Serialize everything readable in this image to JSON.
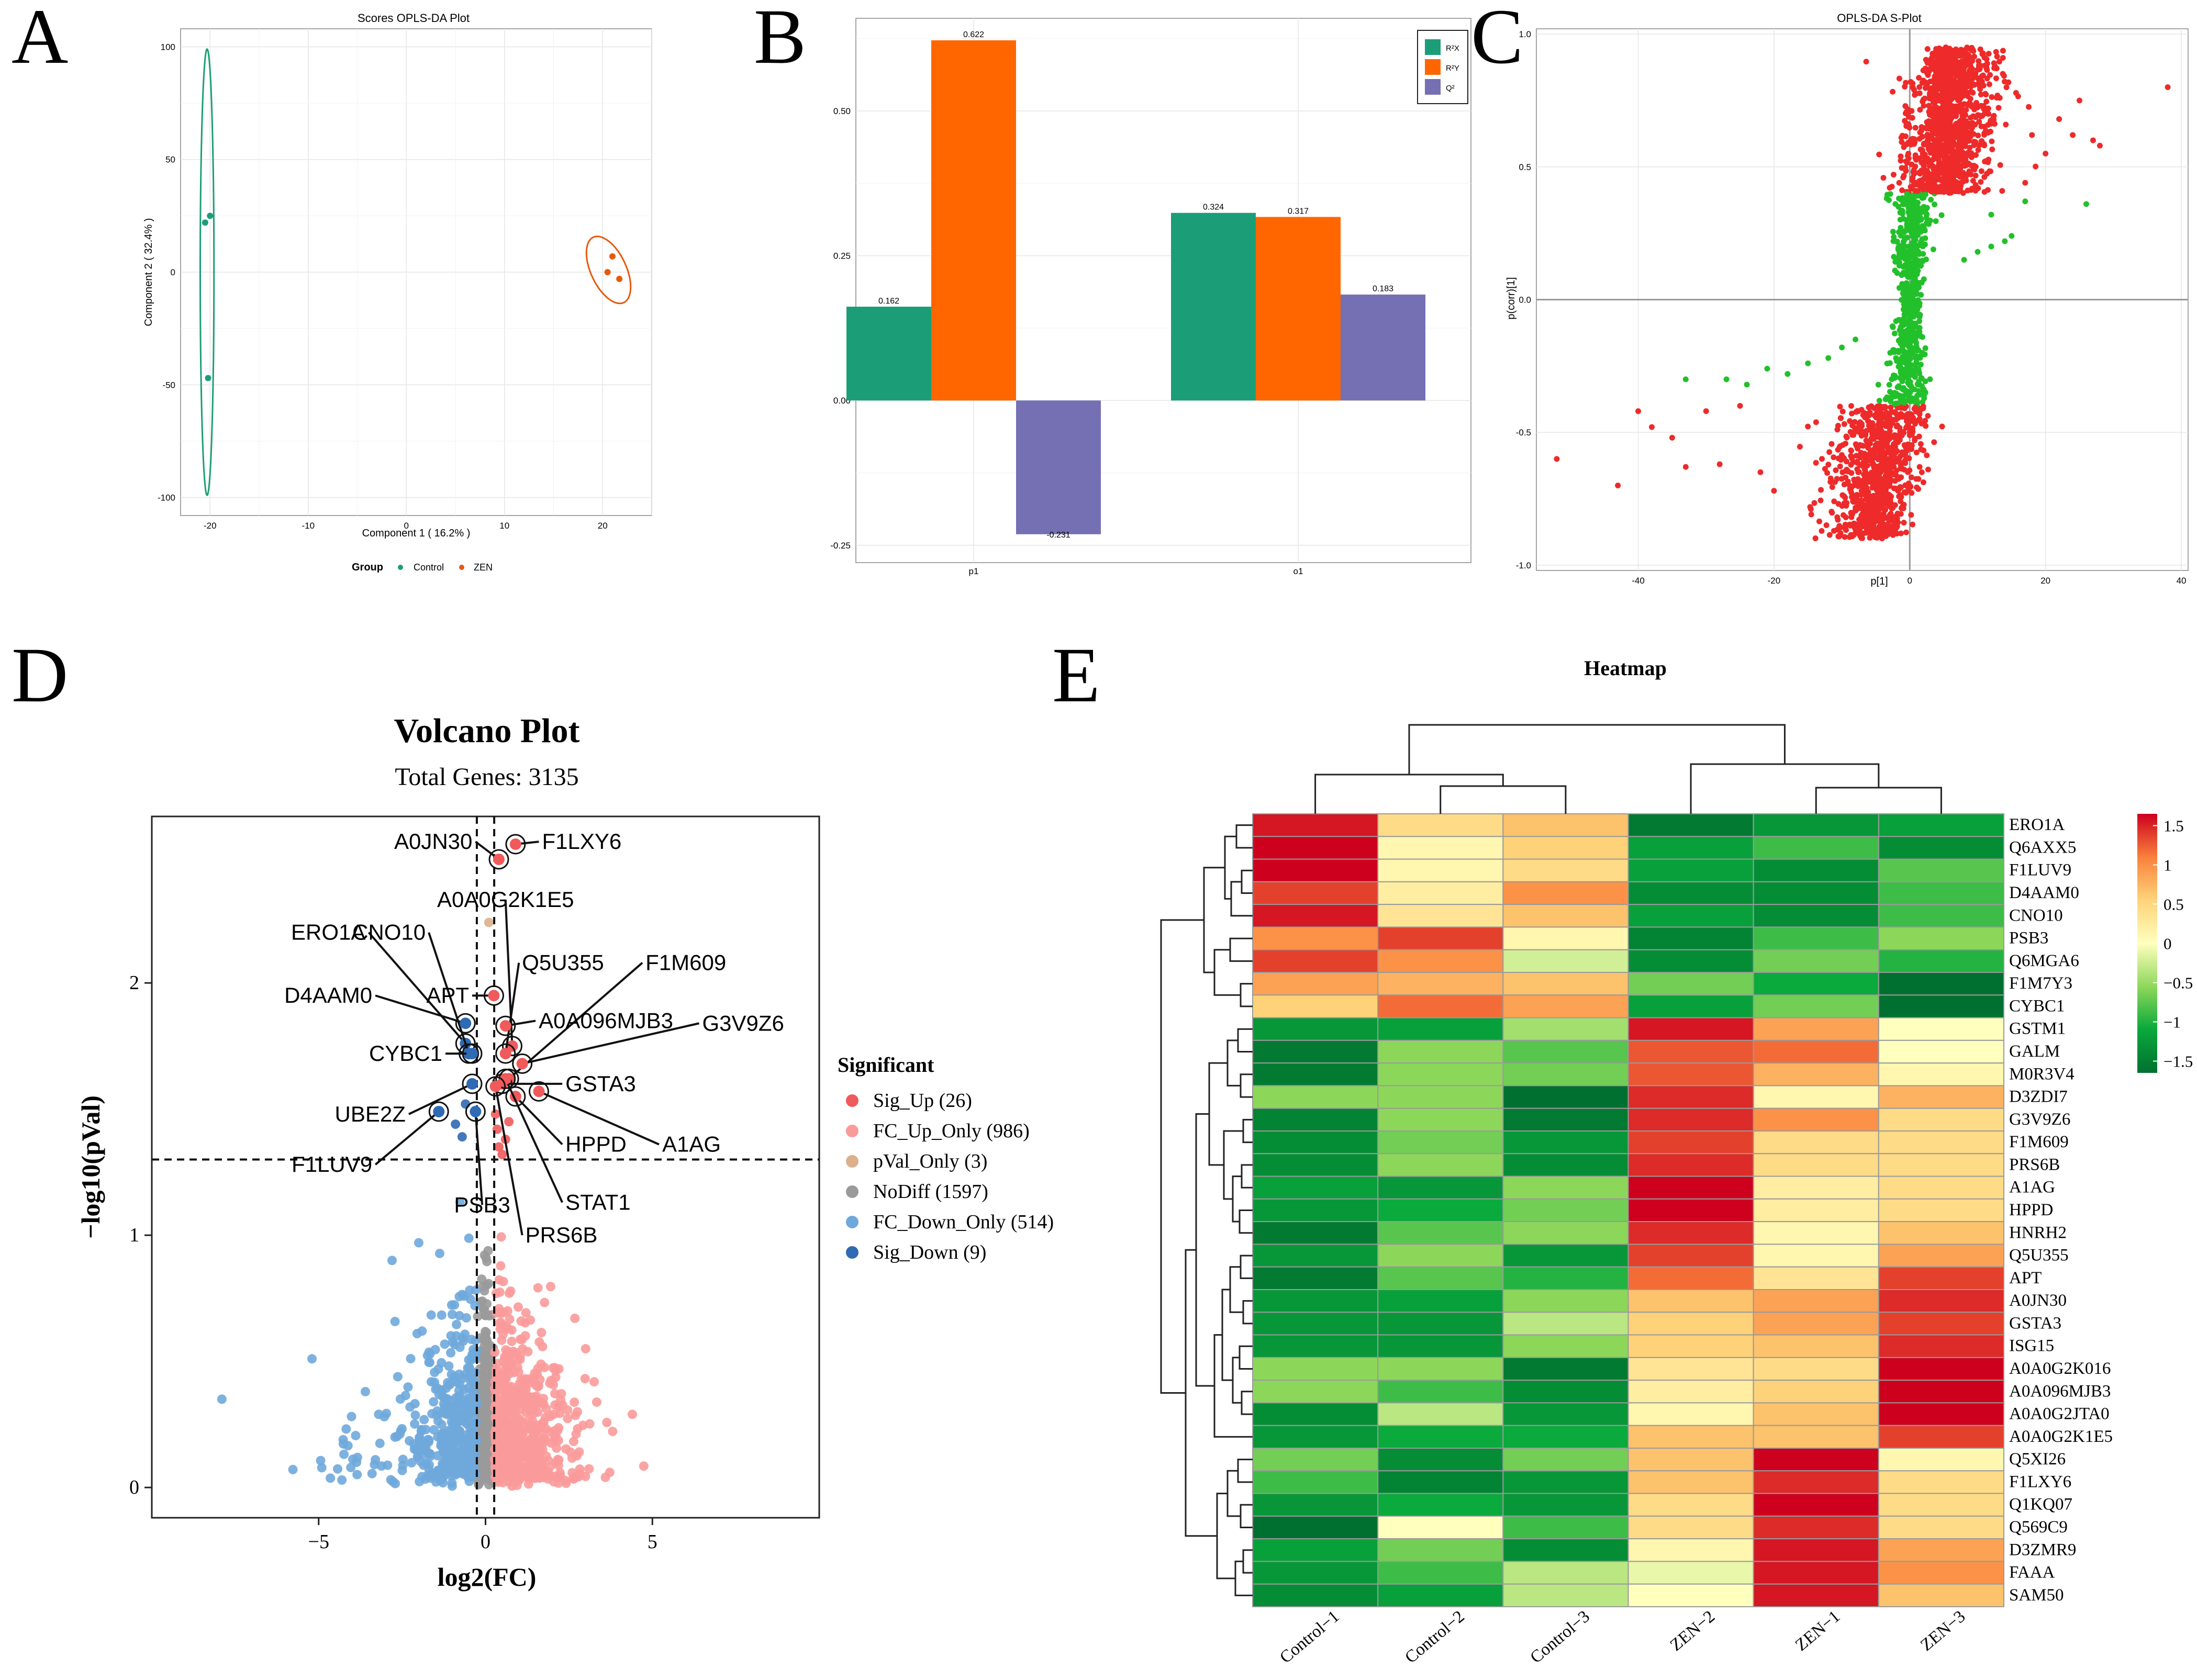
{
  "panel_letters": {
    "a": "A",
    "b": "B",
    "c": "C",
    "d": "D",
    "e": "E"
  },
  "colors": {
    "control": "#1b9e77",
    "zen": "#e8590c",
    "r2x": "#1b9e77",
    "r2y": "#ff6600",
    "q2": "#7570b3",
    "splot_red": "#ee2a2a",
    "splot_green": "#22c02a",
    "sig_up": "#f05a5a",
    "fc_up": "#fb9a9a",
    "pval_only": "#dcb08c",
    "nodiff": "#9a9a9a",
    "fc_down": "#6fa8dc",
    "sig_down": "#2f6ab4"
  },
  "chart_data": [
    {
      "panel": "A",
      "type": "scatter",
      "title": "Scores OPLS-DA Plot",
      "xlabel": "Component 1 ( 16.2% )",
      "ylabel": "Component 2 ( 32.4% )",
      "xlim": [
        -23,
        25
      ],
      "ylim": [
        -108,
        108
      ],
      "x_ticks": [
        "-20",
        "-10",
        "0",
        "10",
        "20"
      ],
      "y_ticks": [
        "-100",
        "-50",
        "0",
        "50",
        "100"
      ],
      "legend_title": "Group",
      "series": [
        {
          "name": "Control",
          "x": [
            -20.5,
            -20.0,
            -20.2
          ],
          "y": [
            22,
            25,
            -47
          ]
        },
        {
          "name": "ZEN",
          "x": [
            20.5,
            21.0,
            21.7
          ],
          "y": [
            0,
            7,
            -3
          ]
        }
      ],
      "ellipses": [
        {
          "name": "Control",
          "cx": -20.3,
          "cy": 0,
          "rx": 0.7,
          "ry": 99
        },
        {
          "name": "ZEN",
          "cx": 20.6,
          "cy": 1,
          "rx": 1.8,
          "ry": 16
        }
      ]
    },
    {
      "panel": "B",
      "type": "bar",
      "categories": [
        "p1",
        "o1"
      ],
      "series": [
        {
          "name": "R²X",
          "values": [
            0.162,
            0.324
          ],
          "labels": [
            "0.162",
            "0.324"
          ]
        },
        {
          "name": "R²Y",
          "values": [
            0.622,
            0.317
          ],
          "labels": [
            "0.622",
            "0.317"
          ]
        },
        {
          "name": "Q²",
          "values": [
            -0.231,
            0.183
          ],
          "labels": [
            "-0.231",
            "0.183"
          ]
        }
      ],
      "ylim": [
        -0.28,
        0.66
      ],
      "y_ticks": [
        "-0.25",
        "0.00",
        "0.25",
        "0.50"
      ]
    },
    {
      "panel": "C",
      "type": "scatter",
      "title": "OPLS-DA S-Plot",
      "xlabel": "p[1]",
      "ylabel": "p(corr)[1]",
      "xlim": [
        -55,
        41
      ],
      "ylim": [
        -1.02,
        1.02
      ],
      "x_ticks": [
        "-40",
        "-20",
        "0",
        "20",
        "40"
      ],
      "y_ticks": [
        "-1.0",
        "-0.5",
        "0.0",
        "0.5",
        "1.0"
      ]
    },
    {
      "panel": "D",
      "type": "scatter",
      "title": "Volcano Plot",
      "subtitle": "Total Genes: 3135",
      "xlabel": "log2(FC)",
      "ylabel": "−log10(pVal)",
      "xlim": [
        -10,
        10
      ],
      "ylim": [
        -0.12,
        2.66
      ],
      "x_ticks": [
        "−5",
        "0",
        "5"
      ],
      "y_ticks": [
        "0",
        "1",
        "2"
      ],
      "thresholds": {
        "fc": [
          -0.26,
          0.26
        ],
        "pval": 1.3
      },
      "legend_title": "Significant",
      "legend": [
        "Sig_Up (26)",
        "FC_Up_Only (986)",
        "pVal_Only (3)",
        "NoDiff (1597)",
        "FC_Down_Only (514)",
        "Sig_Down (9)"
      ],
      "labeled_points": [
        {
          "name": "F1LXY6",
          "x": 0.9,
          "y": 2.55,
          "lx": 1.6,
          "ly": 2.56
        },
        {
          "name": "A0JN30",
          "x": 0.4,
          "y": 2.49,
          "lx": -0.3,
          "ly": 2.56
        },
        {
          "name": "A0A0G2K1E5",
          "x": 0.8,
          "y": 1.75,
          "lx": 0.6,
          "ly": 2.33
        },
        {
          "name": "Q5U355",
          "x": 0.6,
          "y": 1.72,
          "lx": 1.0,
          "ly": 2.08
        },
        {
          "name": "F1M609",
          "x": 0.7,
          "y": 1.62,
          "lx": 4.7,
          "ly": 2.08
        },
        {
          "name": "ERO1A",
          "x": -0.6,
          "y": 1.76,
          "lx": -3.5,
          "ly": 2.2
        },
        {
          "name": "CNO10",
          "x": -0.5,
          "y": 1.72,
          "lx": -1.7,
          "ly": 2.2
        },
        {
          "name": "APT",
          "x": 0.25,
          "y": 1.95,
          "lx": -0.4,
          "ly": 1.95
        },
        {
          "name": "D4AAM0",
          "x": -0.6,
          "y": 1.84,
          "lx": -3.3,
          "ly": 1.95
        },
        {
          "name": "A0A096MJB3",
          "x": 0.6,
          "y": 1.83,
          "lx": 1.5,
          "ly": 1.85
        },
        {
          "name": "G3V9Z6",
          "x": 1.1,
          "y": 1.68,
          "lx": 6.4,
          "ly": 1.84
        },
        {
          "name": "CYBC1",
          "x": -0.4,
          "y": 1.72,
          "lx": -1.2,
          "ly": 1.72
        },
        {
          "name": "GSTA3",
          "x": 0.5,
          "y": 1.6,
          "lx": 2.3,
          "ly": 1.6
        },
        {
          "name": "UBE2Z",
          "x": -0.4,
          "y": 1.6,
          "lx": -2.3,
          "ly": 1.48
        },
        {
          "name": "HPPD",
          "x": 0.9,
          "y": 1.55,
          "lx": 2.3,
          "ly": 1.36
        },
        {
          "name": "A1AG",
          "x": 1.6,
          "y": 1.57,
          "lx": 5.2,
          "ly": 1.36
        },
        {
          "name": "F1LUV9",
          "x": -1.4,
          "y": 1.49,
          "lx": -3.3,
          "ly": 1.28
        },
        {
          "name": "PSB3",
          "x": -0.3,
          "y": 1.49,
          "lx": -0.1,
          "ly": 1.12
        },
        {
          "name": "STAT1",
          "x": 0.6,
          "y": 1.62,
          "lx": 2.3,
          "ly": 1.13
        },
        {
          "name": "PRS6B",
          "x": 0.3,
          "y": 1.59,
          "lx": 1.1,
          "ly": 1.0
        }
      ]
    },
    {
      "panel": "E",
      "type": "heatmap",
      "title": "Heatmap",
      "columns": [
        "Control−1",
        "Control−2",
        "Control−3",
        "ZEN−2",
        "ZEN−1",
        "ZEN−3"
      ],
      "rows": [
        "ERO1A",
        "Q6AXX5",
        "F1LUV9",
        "D4AAM0",
        "CNO10",
        "PSB3",
        "Q6MGA6",
        "F1M7Y3",
        "CYBC1",
        "GSTM1",
        "GALM",
        "M0R3V4",
        "D3ZDI7",
        "G3V9Z6",
        "F1M609",
        "PRS6B",
        "A1AG",
        "HPPD",
        "HNRH2",
        "Q5U355",
        "APT",
        "A0JN30",
        "GSTA3",
        "ISG15",
        "A0A0G2K016",
        "A0A096MJB3",
        "A0A0G2JTA0",
        "A0A0G2K1E5",
        "Q5XI26",
        "F1LXY6",
        "Q1KQ07",
        "Q569C9",
        "D3ZMR9",
        "FAAA",
        "SAM50"
      ],
      "values": [
        [
          1.5,
          0.4,
          0.6,
          -1.5,
          -1.2,
          -1.1
        ],
        [
          1.6,
          0.1,
          0.5,
          -1.1,
          -0.8,
          -1.3
        ],
        [
          1.6,
          0.1,
          0.4,
          -1.1,
          -1.3,
          -0.7
        ],
        [
          1.3,
          0.2,
          0.9,
          -1.3,
          -1.3,
          -0.8
        ],
        [
          1.5,
          0.3,
          0.6,
          -1.1,
          -1.3,
          -0.8
        ],
        [
          0.9,
          1.3,
          0.1,
          -1.4,
          -0.8,
          -0.5
        ],
        [
          1.3,
          0.9,
          -0.2,
          -1.3,
          -0.6,
          -0.9
        ],
        [
          0.8,
          0.7,
          0.6,
          -0.6,
          -1.0,
          -1.6
        ],
        [
          0.5,
          1.1,
          0.8,
          -1.1,
          -0.6,
          -1.6
        ],
        [
          -1.2,
          -1.1,
          -0.4,
          1.5,
          0.8,
          0.0
        ],
        [
          -1.5,
          -0.5,
          -0.7,
          1.2,
          1.1,
          0.0
        ],
        [
          -1.5,
          -0.5,
          -0.6,
          1.2,
          0.7,
          0.1
        ],
        [
          -0.5,
          -0.5,
          -1.6,
          1.4,
          0.1,
          0.7
        ],
        [
          -1.4,
          -0.5,
          -1.5,
          1.4,
          0.9,
          0.4
        ],
        [
          -1.3,
          -0.6,
          -1.2,
          1.3,
          0.4,
          0.4
        ],
        [
          -1.3,
          -0.5,
          -1.3,
          1.4,
          0.4,
          0.4
        ],
        [
          -1.1,
          -1.2,
          -0.5,
          1.6,
          0.2,
          0.4
        ],
        [
          -1.2,
          -1.0,
          -0.6,
          1.6,
          0.2,
          0.4
        ],
        [
          -1.5,
          -0.7,
          -0.5,
          1.4,
          0.1,
          0.6
        ],
        [
          -1.2,
          -0.5,
          -1.2,
          1.3,
          0.1,
          0.8
        ],
        [
          -1.5,
          -0.7,
          -0.9,
          1.1,
          0.3,
          1.3
        ],
        [
          -1.2,
          -1.1,
          -0.5,
          0.6,
          0.8,
          1.4
        ],
        [
          -1.2,
          -1.2,
          -0.3,
          0.5,
          0.8,
          1.3
        ],
        [
          -1.2,
          -1.2,
          -0.5,
          0.5,
          0.6,
          1.4
        ],
        [
          -0.5,
          -0.5,
          -1.5,
          0.3,
          0.4,
          1.6
        ],
        [
          -0.5,
          -0.8,
          -1.3,
          0.2,
          0.5,
          1.6
        ],
        [
          -1.3,
          -0.3,
          -1.2,
          0.1,
          0.6,
          1.6
        ],
        [
          -1.2,
          -1.0,
          -1.0,
          0.6,
          0.6,
          1.3
        ],
        [
          -0.6,
          -1.3,
          -0.6,
          0.6,
          1.6,
          0.1
        ],
        [
          -0.8,
          -1.4,
          -1.2,
          0.6,
          1.4,
          0.4
        ],
        [
          -1.2,
          -1.0,
          -1.2,
          0.4,
          1.6,
          0.4
        ],
        [
          -1.6,
          0.0,
          -0.8,
          0.4,
          1.4,
          0.4
        ],
        [
          -1.1,
          -0.6,
          -1.3,
          0.1,
          1.5,
          0.8
        ],
        [
          -1.2,
          -0.8,
          -0.3,
          -0.1,
          1.5,
          0.9
        ],
        [
          -1.3,
          -1.1,
          -0.3,
          0.0,
          1.5,
          0.6
        ]
      ],
      "colorbar_ticks": [
        "1.5",
        "1",
        "0.5",
        "0",
        "−0.5",
        "−1",
        "−1.5"
      ],
      "colorbar_values": [
        1.5,
        1,
        0.5,
        0,
        -0.5,
        -1,
        -1.5
      ]
    }
  ]
}
